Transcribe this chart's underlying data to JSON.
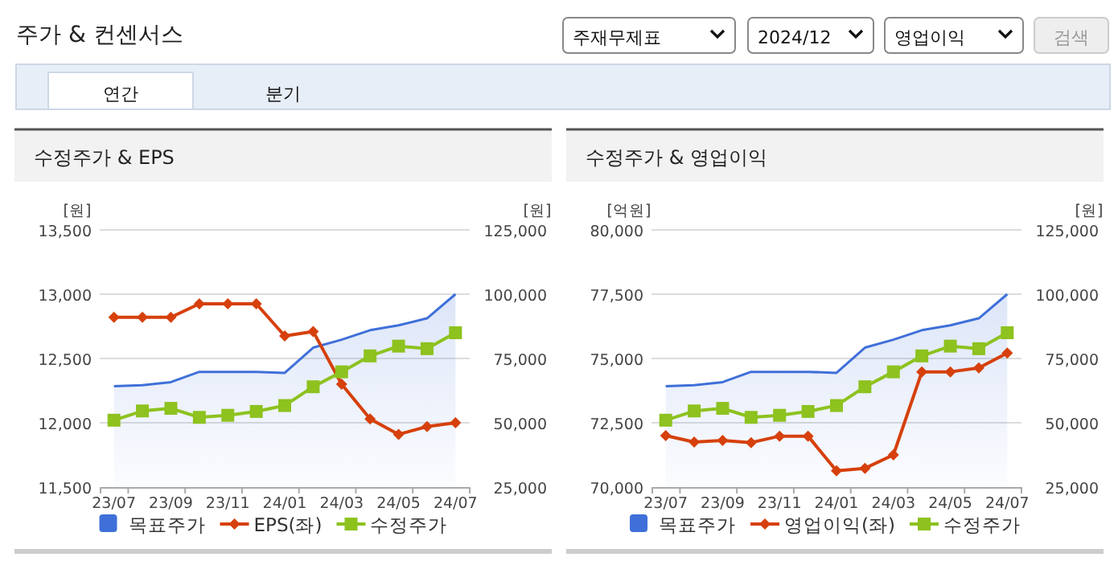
{
  "chart_data": [
    {
      "type": "other",
      "title": "주가 & 컨센서스",
      "annotations": [
        "주재무제표",
        "2024/12",
        "영업이익",
        "검색",
        "연간",
        "분기"
      ]
    },
    {
      "type": "line",
      "title": "수정주가 & EPS",
      "ylabel": "[원]",
      "y2label": "[원]",
      "categories": [
        "23/07",
        null,
        "23/09",
        null,
        "23/11",
        null,
        "24/01",
        null,
        "24/03",
        null,
        "24/05",
        null,
        "24/07"
      ],
      "ylim": [
        11500,
        13500
      ],
      "yticks": [
        {
          "value": 11500,
          "label": "11,500"
        },
        {
          "value": 12000,
          "label": "12,000"
        },
        {
          "value": 12500,
          "label": "12,500"
        },
        {
          "value": 13000,
          "label": "13,000"
        },
        {
          "value": 13500,
          "label": "13,500"
        }
      ],
      "y2lim": [
        25000,
        125000
      ],
      "y2ticks": [
        {
          "value": 25000,
          "label": "25,000"
        },
        {
          "value": 50000,
          "label": "50,000"
        },
        {
          "value": 75000,
          "label": "75,000"
        },
        {
          "value": 100000,
          "label": "100,000"
        },
        {
          "value": 125000,
          "label": "125,000"
        }
      ],
      "grid": "y",
      "legend": "bottom",
      "series": [
        {
          "name": "목표주가",
          "type": "area",
          "axis": "y2",
          "color": "#3f70d9",
          "marker": "none",
          "values": [
            64200,
            64600,
            65800,
            69800,
            69800,
            69800,
            69400,
            79200,
            82300,
            86000,
            87900,
            90600,
            100000
          ]
        },
        {
          "name": "EPS(좌)",
          "type": "line",
          "axis": "y",
          "color": "#d6400c",
          "marker": "diamond",
          "values": [
            12820,
            12820,
            12820,
            12925,
            12925,
            12925,
            12675,
            12710,
            12300,
            12030,
            11910,
            11970,
            12000
          ]
        },
        {
          "name": "수정주가",
          "type": "line",
          "axis": "y2",
          "color": "#8dc21f",
          "marker": "square",
          "values": [
            51000,
            54600,
            55600,
            52100,
            52900,
            54400,
            56700,
            64000,
            69800,
            76000,
            79800,
            78800,
            85000
          ]
        }
      ]
    },
    {
      "type": "line",
      "title": "수정주가 & 영업이익",
      "ylabel": "[억원]",
      "y2label": "[원]",
      "categories": [
        "23/07",
        null,
        "23/09",
        null,
        "23/11",
        null,
        "24/01",
        null,
        "24/03",
        null,
        "24/05",
        null,
        "24/07"
      ],
      "ylim": [
        70000,
        80000
      ],
      "yticks": [
        {
          "value": 70000,
          "label": "70,000"
        },
        {
          "value": 72500,
          "label": "72,500"
        },
        {
          "value": 75000,
          "label": "75,000"
        },
        {
          "value": 77500,
          "label": "77,500"
        },
        {
          "value": 80000,
          "label": "80,000"
        }
      ],
      "y2lim": [
        25000,
        125000
      ],
      "y2ticks": [
        {
          "value": 25000,
          "label": "25,000"
        },
        {
          "value": 50000,
          "label": "50,000"
        },
        {
          "value": 75000,
          "label": "75,000"
        },
        {
          "value": 100000,
          "label": "100,000"
        },
        {
          "value": 125000,
          "label": "125,000"
        }
      ],
      "grid": "y",
      "legend": "bottom",
      "series": [
        {
          "name": "목표주가",
          "type": "area",
          "axis": "y2",
          "color": "#3f70d9",
          "marker": "none",
          "values": [
            64200,
            64600,
            65800,
            69800,
            69800,
            69800,
            69400,
            79200,
            82300,
            86000,
            87900,
            90600,
            100000
          ]
        },
        {
          "name": "영업이익(좌)",
          "type": "line",
          "axis": "y",
          "color": "#d6400c",
          "marker": "diamond",
          "values": [
            72000,
            71750,
            71810,
            71730,
            71980,
            71980,
            70630,
            70730,
            71250,
            74480,
            74480,
            74630,
            75210
          ]
        },
        {
          "name": "수정주가",
          "type": "line",
          "axis": "y2",
          "color": "#8dc21f",
          "marker": "square",
          "values": [
            51000,
            54600,
            55600,
            52100,
            52900,
            54400,
            56700,
            64000,
            69800,
            76000,
            79800,
            78800,
            85000
          ]
        }
      ]
    }
  ]
}
